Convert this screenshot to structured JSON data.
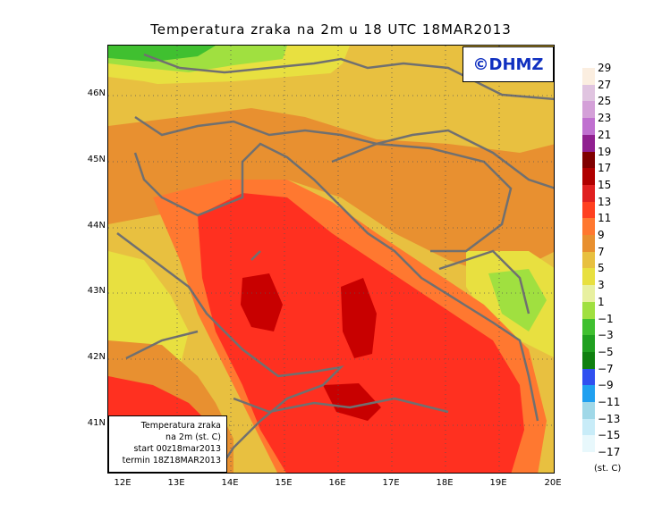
{
  "title": "Temperatura zraka na 2m u 18 UTC 18MAR2013",
  "copyright": "©DHMZ",
  "info": {
    "line1": "Temperatura zraka",
    "line2": "na 2m (st. C)",
    "line3": "start 00z18mar2013",
    "line4": "termin 18Z18MAR2013"
  },
  "lat_labels": [
    "46N",
    "45N",
    "44N",
    "43N",
    "42N",
    "41N"
  ],
  "lon_labels": [
    "12E",
    "13E",
    "14E",
    "15E",
    "16E",
    "17E",
    "18E",
    "19E",
    "20E"
  ],
  "legend": {
    "unit": "(st. C)",
    "labels": [
      "29",
      "27",
      "25",
      "23",
      "21",
      "19",
      "17",
      "15",
      "13",
      "11",
      "9",
      "7",
      "5",
      "3",
      "1",
      "−1",
      "−3",
      "−5",
      "−7",
      "−9",
      "−11",
      "−13",
      "−15",
      "−17"
    ],
    "colors": [
      "#fbeee0",
      "#e0c4e0",
      "#d4a0d8",
      "#c070d0",
      "#902090",
      "#800000",
      "#b00000",
      "#e02020",
      "#ff4020",
      "#ff7830",
      "#e89030",
      "#e8c040",
      "#e8e040",
      "#e8f0a0",
      "#a0e040",
      "#40c030",
      "#20a020",
      "#108010",
      "#3050f0",
      "#20a0f0",
      "#a0d8e8",
      "#c8ecf8",
      "#e8f8fc"
    ]
  },
  "map_colors": {
    "land_green": "#40c030",
    "light_green": "#a0e040",
    "yellow": "#e8e040",
    "gold": "#e8c040",
    "orange": "#e89030",
    "dark_orange": "#ff7830",
    "red": "#ff3020",
    "dark_red": "#c80000",
    "coast": "#707070"
  }
}
